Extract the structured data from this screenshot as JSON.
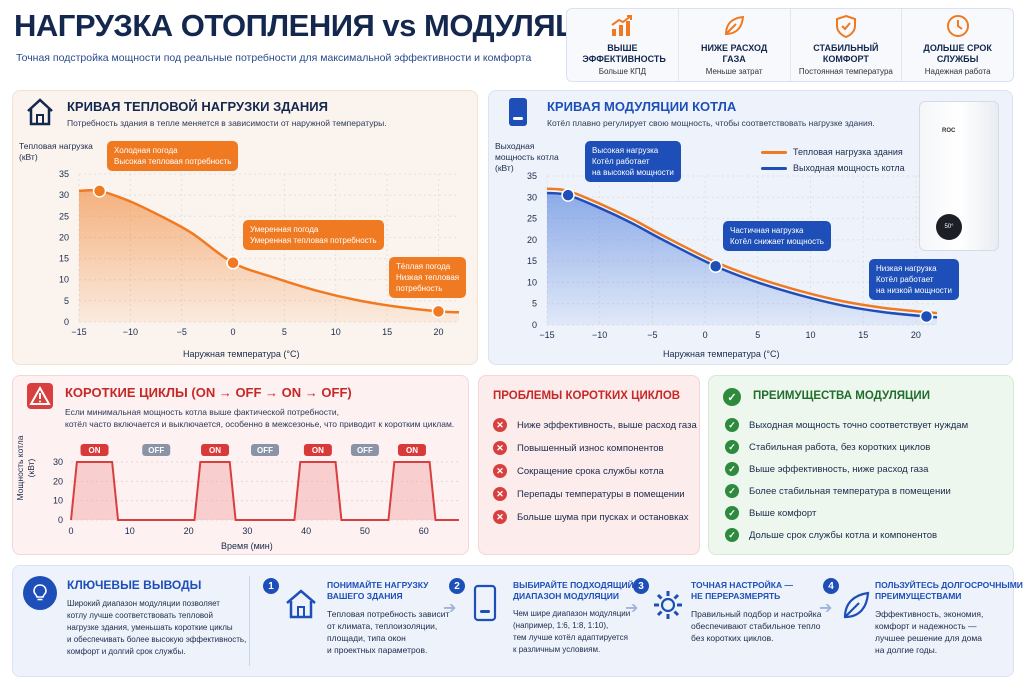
{
  "header": {
    "title": "НАГРУЗКА ОТОПЛЕНИЯ vs МОДУЛЯЦИЯ",
    "subtitle": "Точная подстройка мощности под реальные потребности для максимальной эффективности и комфорта"
  },
  "benefits": [
    {
      "title": "ВЫШЕ ЭФФЕКТИВНОСТЬ",
      "sub": "Больше КПД",
      "icon": "chart-up-icon"
    },
    {
      "title": "НИЖЕ РАСХОД ГАЗА",
      "sub": "Меньше затрат",
      "icon": "leaf-icon"
    },
    {
      "title": "СТАБИЛЬНЫЙ КОМФОРТ",
      "sub": "Постоянная температура",
      "icon": "shield-check-icon"
    },
    {
      "title": "ДОЛЬШЕ СРОК СЛУЖБЫ",
      "sub": "Надежная работа",
      "icon": "clock-icon"
    }
  ],
  "load_panel": {
    "title": "КРИВАЯ ТЕПЛОВОЙ НАГРУЗКИ ЗДАНИЯ",
    "desc": "Потребность здания в тепле меняется в зависимости от наружной температуры.",
    "ylabel": "Тепловая нагрузка (кВт)",
    "xlabel": "Наружная температура (°C)",
    "callouts": {
      "cold": [
        "Холодная погода",
        "Высокая тепловая потребность"
      ],
      "mild": [
        "Умеренная погода",
        "Умеренная тепловая потребность"
      ],
      "warm": [
        "Тёплая погода",
        "Низкая тепловая",
        "потребность"
      ]
    }
  },
  "modulation_panel": {
    "title": "КРИВАЯ МОДУЛЯЦИИ КОТЛА",
    "desc": "Котёл плавно регулирует свою мощность, чтобы соответствовать нагрузке здания.",
    "ylabel": "Выходная мощность котла (кВт)",
    "xlabel": "Наружная температура (°C)",
    "legend": [
      "Тепловая нагрузка здания",
      "Выходная мощность котла"
    ],
    "boiler_label": "ROC",
    "boiler_display": "50°",
    "callouts": {
      "high": [
        "Высокая нагрузка",
        "Котёл работает",
        "на высокой мощности"
      ],
      "partial": [
        "Частичная нагрузка",
        "Котёл снижает мощность"
      ],
      "low": [
        "Низкая нагрузка",
        "Котёл работает",
        "на низкой мощности"
      ]
    }
  },
  "chart_data": [
    {
      "type": "line",
      "title": "КРИВАЯ ТЕПЛОВОЙ НАГРУЗКИ ЗДАНИЯ",
      "xlabel": "Наружная температура (°C)",
      "ylabel": "Тепловая нагрузка (кВт)",
      "xlim": [
        -15,
        22
      ],
      "ylim": [
        0,
        35
      ],
      "xticks": [
        -15,
        -10,
        -5,
        0,
        5,
        10,
        15,
        20
      ],
      "yticks": [
        0,
        5,
        10,
        15,
        20,
        25,
        30,
        35
      ],
      "series": [
        {
          "name": "",
          "color": "#f07a22",
          "x": [
            -15,
            -13,
            -10,
            -7,
            -4,
            0,
            4,
            8,
            12,
            16,
            20,
            22
          ],
          "y": [
            31,
            31,
            28.5,
            25,
            21,
            14,
            10.5,
            7.5,
            5.2,
            3.6,
            2.5,
            2.3
          ]
        }
      ],
      "markers": [
        {
          "x": -13,
          "y": 31
        },
        {
          "x": 0,
          "y": 14
        },
        {
          "x": 20,
          "y": 2.5
        }
      ]
    },
    {
      "type": "line",
      "title": "КРИВАЯ МОДУЛЯЦИИ КОТЛА",
      "xlabel": "Наружная температура (°C)",
      "ylabel": "Выходная мощность котла (кВт)",
      "xlim": [
        -15,
        22
      ],
      "ylim": [
        0,
        35
      ],
      "xticks": [
        -15,
        -10,
        -5,
        0,
        5,
        10,
        15,
        20
      ],
      "yticks": [
        0,
        5,
        10,
        15,
        20,
        25,
        30,
        35
      ],
      "series": [
        {
          "name": "Тепловая нагрузка здания",
          "color": "#f07a22",
          "x": [
            -15,
            -13,
            -10,
            -7,
            -4,
            1,
            5,
            9,
            13,
            17,
            21,
            22
          ],
          "y": [
            32,
            31.5,
            28.5,
            25,
            21,
            14.8,
            11,
            8,
            5.6,
            4,
            3,
            2.8
          ]
        },
        {
          "name": "Выходная мощность котла",
          "color": "#1e4fb8",
          "x": [
            -15,
            -13,
            -10,
            -7,
            -4,
            1,
            5,
            9,
            13,
            17,
            21,
            22
          ],
          "y": [
            31,
            30.5,
            27.5,
            24,
            20,
            13.8,
            10,
            7,
            4.6,
            3,
            2,
            1.8
          ]
        }
      ],
      "markers": [
        {
          "x": -13,
          "y": 30.5
        },
        {
          "x": 1,
          "y": 13.8
        },
        {
          "x": 21,
          "y": 2
        }
      ]
    },
    {
      "type": "line",
      "title": "КОРОТКИЕ ЦИКЛЫ (ON → OFF → ON → OFF)",
      "xlabel": "Время (мин)",
      "ylabel": "Мощность котла (кВт)",
      "xlim": [
        0,
        66
      ],
      "ylim": [
        0,
        30
      ],
      "xticks": [
        0,
        10,
        20,
        30,
        40,
        50,
        60
      ],
      "yticks": [
        0,
        10,
        20,
        30
      ],
      "series": [
        {
          "name": "",
          "color": "#d84040",
          "x": [
            0,
            1,
            2,
            7,
            8,
            21,
            22,
            27,
            28,
            38,
            39,
            45,
            46,
            54,
            55,
            61,
            62,
            66
          ],
          "y": [
            0,
            30,
            30,
            30,
            0,
            0,
            30,
            30,
            0,
            0,
            30,
            30,
            0,
            0,
            30,
            30,
            0,
            0
          ]
        }
      ],
      "states": [
        "ON",
        "OFF",
        "ON",
        "OFF",
        "ON",
        "OFF",
        "ON"
      ]
    }
  ],
  "cycles_panel": {
    "title": "КОРОТКИЕ ЦИКЛЫ (ON → OFF → ON → OFF)",
    "desc1": "Если минимальная мощность котла выше фактической потребности,",
    "desc2": "котёл часто включается и выключается, особенно в межсезонье, что приводит к коротким циклам.",
    "on": "ON",
    "off": "OFF",
    "ylabel": "Мощность котла (кВт)",
    "xlabel": "Время (мин)"
  },
  "problems": {
    "title": "ПРОБЛЕМЫ КОРОТКИХ ЦИКЛОВ",
    "items": [
      "Ниже эффективность, выше расход газа",
      "Повышенный износ компонентов",
      "Сокращение срока службы котла",
      "Перепады температуры в помещении",
      "Больше шума при пусках и остановках"
    ]
  },
  "advantages": {
    "title": "ПРЕИМУЩЕСТВА МОДУЛЯЦИИ",
    "items": [
      "Выходная мощность точно соответствует нуждам",
      "Стабильная работа, без коротких циклов",
      "Выше эффективность, ниже расход газа",
      "Более стабильная температура в помещении",
      "Выше комфорт",
      "Дольше срок службы котла и компонентов"
    ]
  },
  "conclusions": {
    "title": "КЛЮЧЕВЫЕ ВЫВОДЫ",
    "text": [
      "Широкий диапазон модуляции позволяет",
      "котлу лучше соответствовать тепловой",
      "нагрузке здания, уменьшать короткие циклы",
      "и обеспечивать более высокую эффективность,",
      "комфорт и долгий срок службы."
    ],
    "steps": [
      {
        "num": "1",
        "title": [
          "ПОНИМАЙТЕ НАГРУЗКУ",
          "ВАШЕГО ЗДАНИЯ"
        ],
        "text": [
          "Тепловая потребность зависит",
          "от климата, теплоизоляции,",
          "площади, типа окон",
          "и проектных параметров."
        ]
      },
      {
        "num": "2",
        "title": [
          "ВЫБИРАЙТЕ ПОДХОДЯЩИЙ",
          "ДИАПАЗОН МОДУЛЯЦИИ"
        ],
        "text": [
          "Чем шире диапазон модуляции",
          "(например, 1:6, 1:8, 1:10),",
          "тем лучше котёл адаптируется",
          "к различным условиям."
        ]
      },
      {
        "num": "3",
        "title": [
          "ТОЧНАЯ НАСТРОЙКА —",
          "НЕ ПЕРЕРАЗМЕРЯТЬ"
        ],
        "text": [
          "Правильный подбор и настройка",
          "обеспечивают стабильное тепло",
          "без коротких циклов."
        ]
      },
      {
        "num": "4",
        "title": [
          "ПОЛЬЗУЙТЕСЬ ДОЛГОСРОЧНЫМИ",
          "ПРЕИМУЩЕСТВАМИ"
        ],
        "text": [
          "Эффективность, экономия,",
          "комфорт и надежность —",
          "лучшее решение для дома",
          "на долгие годы."
        ]
      }
    ]
  }
}
